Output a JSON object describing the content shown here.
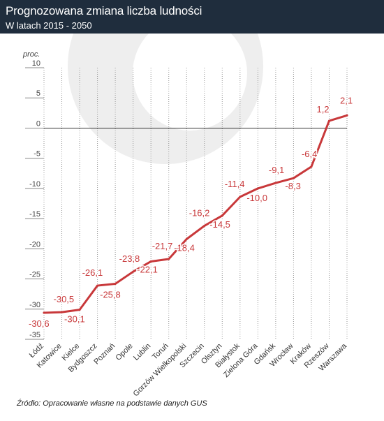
{
  "header": {
    "title": "Prognozowana zmiana liczba ludności",
    "subtitle": "W latach 2015 - 2050"
  },
  "source": "Źródło: Opracowanie własne na podstawie danych GUS",
  "colors": {
    "header_bg": "#1f2d3d",
    "line": "#c8383a",
    "watermark": "#eeeeee"
  },
  "chart_data": {
    "type": "line",
    "ylabel": "proc.",
    "ylim": [
      -35,
      10
    ],
    "yticks": [
      10,
      5,
      0,
      -5,
      -10,
      -15,
      -20,
      -25,
      -30,
      -35
    ],
    "grid": "vertical dotted + zero line",
    "categories": [
      "Łódź",
      "Katowice",
      "Kielce",
      "Bydgoszcz",
      "Poznań",
      "Opole",
      "Lublin",
      "Toruń",
      "Gorzów Wielkopolski",
      "Szczecin",
      "Olsztyn",
      "Białystok",
      "Zielona Góra",
      "Gdańsk",
      "Wrocław",
      "Kraków",
      "Rzeszów",
      "Warszawa"
    ],
    "values": [
      -30.6,
      -30.5,
      -30.1,
      -26.1,
      -25.8,
      -23.8,
      -22.1,
      -21.7,
      -18.4,
      -16.2,
      -14.5,
      -11.4,
      -10.0,
      -9.1,
      -8.3,
      -6.4,
      1.2,
      2.1
    ],
    "labels": [
      "-30,6",
      "-30,5",
      "-30,1",
      "-26,1",
      "-25,8",
      "-23,8",
      "-22,1",
      "-21,7",
      "-18,4",
      "-16,2",
      "-14,5",
      "-11,4",
      "-10,0",
      "-9,1",
      "-8,3",
      "-6,4",
      "1,2",
      "2,1"
    ]
  }
}
